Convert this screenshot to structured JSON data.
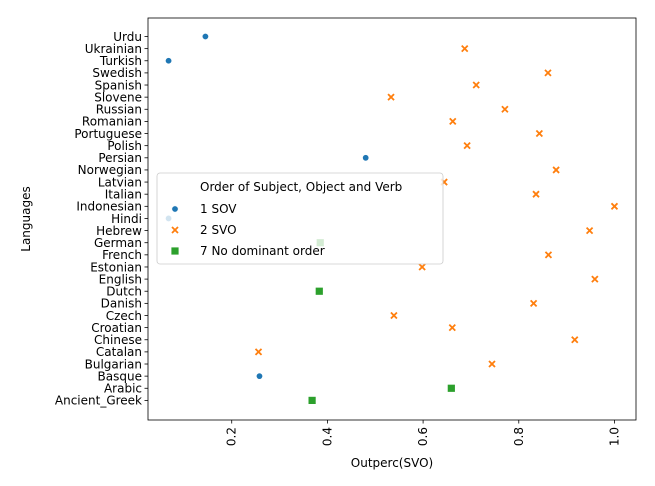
{
  "chart_data": {
    "type": "scatter",
    "xlabel": "Outperc(SVO)",
    "ylabel": "Languages",
    "xlim": [
      0.025,
      1.045
    ],
    "x_ticks": [
      "0.2",
      "0.4",
      "0.6",
      "0.8",
      "1.0"
    ],
    "x_tick_values": [
      0.2,
      0.4,
      0.6,
      0.8,
      1.0
    ],
    "categories": [
      "Urdu",
      "Ukrainian",
      "Turkish",
      "Swedish",
      "Spanish",
      "Slovene",
      "Russian",
      "Romanian",
      "Portuguese",
      "Polish",
      "Persian",
      "Norwegian",
      "Latvian",
      "Italian",
      "Indonesian",
      "Hindi",
      "Hebrew",
      "German",
      "French",
      "Estonian",
      "English",
      "Dutch",
      "Danish",
      "Czech",
      "Croatian",
      "Chinese",
      "Catalan",
      "Bulgarian",
      "Basque",
      "Arabic",
      "Ancient_Greek"
    ],
    "legend": {
      "title": "Order of Subject, Object and Verb",
      "placement": "center-left",
      "entries": [
        {
          "label": "1 SOV",
          "color": "#1f77b4",
          "marker": "circle"
        },
        {
          "label": "2 SVO",
          "color": "#ff7f0e",
          "marker": "x"
        },
        {
          "label": "7 No dominant order",
          "color": "#2ca02c",
          "marker": "square"
        }
      ]
    },
    "series": [
      {
        "name": "1 SOV",
        "color": "#1f77b4",
        "marker": "circle",
        "points": [
          [
            "Urdu",
            0.145
          ],
          [
            "Turkish",
            0.068
          ],
          [
            "Persian",
            0.48
          ],
          [
            "Hindi",
            0.068
          ],
          [
            "Basque",
            0.258
          ]
        ]
      },
      {
        "name": "2 SVO",
        "color": "#ff7f0e",
        "marker": "x",
        "points": [
          [
            "Ukrainian",
            0.687
          ],
          [
            "Swedish",
            0.861
          ],
          [
            "Spanish",
            0.711
          ],
          [
            "Slovene",
            0.533
          ],
          [
            "Russian",
            0.771
          ],
          [
            "Romanian",
            0.662
          ],
          [
            "Portuguese",
            0.843
          ],
          [
            "Polish",
            0.692
          ],
          [
            "Norwegian",
            0.878
          ],
          [
            "Latvian",
            0.644
          ],
          [
            "Italian",
            0.836
          ],
          [
            "Indonesian",
            1.0
          ],
          [
            "Hebrew",
            0.948
          ],
          [
            "French",
            0.862
          ],
          [
            "Estonian",
            0.598
          ],
          [
            "English",
            0.959
          ],
          [
            "Danish",
            0.831
          ],
          [
            "Czech",
            0.539
          ],
          [
            "Croatian",
            0.661
          ],
          [
            "Chinese",
            0.917
          ],
          [
            "Catalan",
            0.256
          ],
          [
            "Bulgarian",
            0.744
          ]
        ]
      },
      {
        "name": "7 No dominant order",
        "color": "#2ca02c",
        "marker": "square",
        "points": [
          [
            "German",
            0.385
          ],
          [
            "Dutch",
            0.383
          ],
          [
            "Arabic",
            0.659
          ],
          [
            "Ancient_Greek",
            0.368
          ]
        ]
      }
    ]
  }
}
